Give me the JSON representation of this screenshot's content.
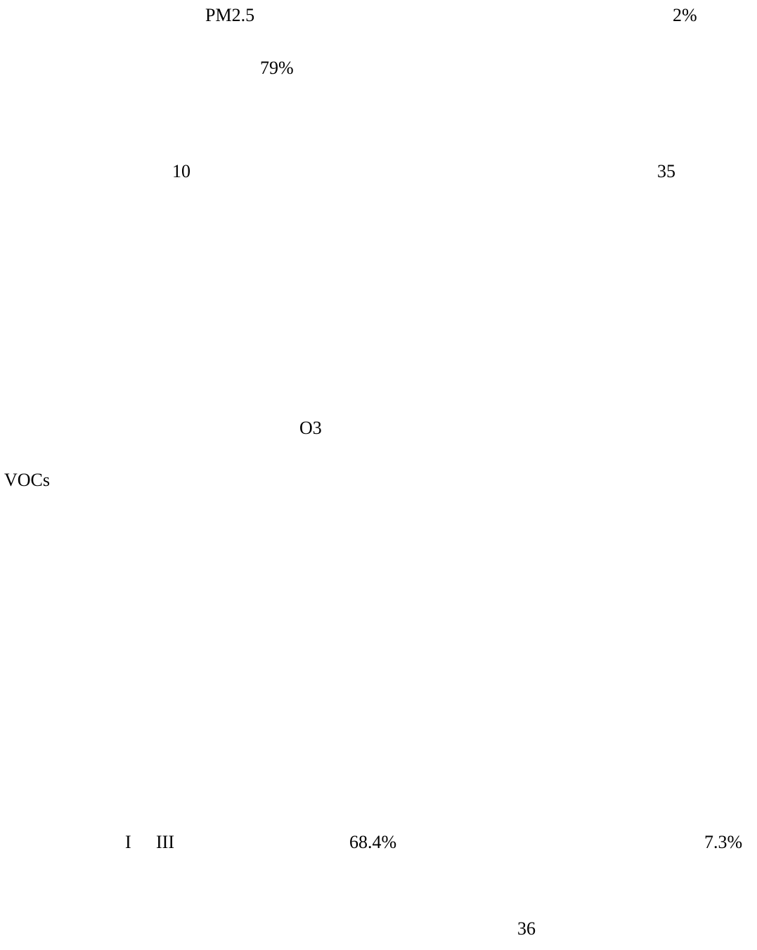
{
  "page": {
    "fragments": {
      "pm25": "PM2.5",
      "pct_2": "2%",
      "pct_79": "79%",
      "num_10": "10",
      "num_35": "35",
      "o3": "O3",
      "vocs": "VOCs",
      "roman_1": "I",
      "roman_3": "III",
      "pct_68_4": "68.4%",
      "pct_7_3": "7.3%"
    },
    "page_number": "36"
  }
}
